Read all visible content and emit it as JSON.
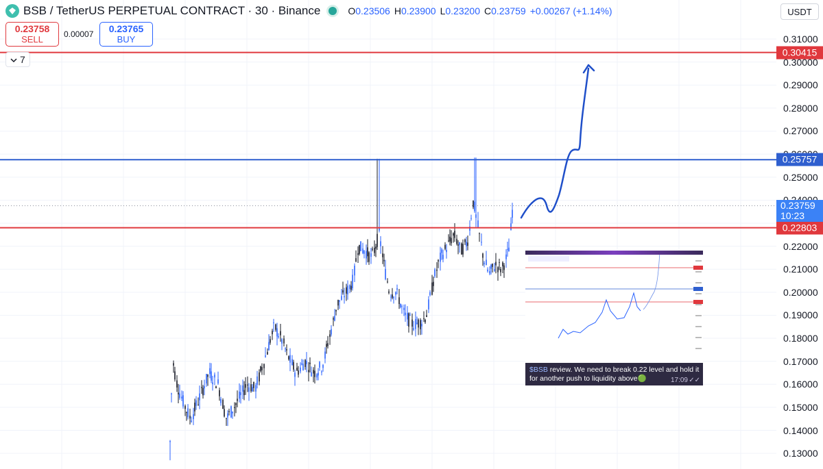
{
  "header": {
    "symbol": "BSB / TetherUS PERPETUAL CONTRACT · 30 · Binance",
    "open_label": "O",
    "open": "0.23506",
    "high_label": "H",
    "high": "0.23900",
    "low_label": "L",
    "low": "0.23200",
    "close_label": "C",
    "close": "0.23759",
    "change": "+0.00267 (+1.14%)",
    "currency": "USDT"
  },
  "trade": {
    "sell_price": "0.23758",
    "sell_label": "SELL",
    "spread": "0.00007",
    "buy_price": "0.23765",
    "buy_label": "BUY"
  },
  "indicators": {
    "count": "7"
  },
  "axis": {
    "ticks": [
      "0.31000",
      "0.30000",
      "0.29000",
      "0.28000",
      "0.27000",
      "0.26000",
      "0.25000",
      "0.24000",
      "0.23000",
      "0.22000",
      "0.21000",
      "0.20000",
      "0.19000",
      "0.18000",
      "0.17000",
      "0.16000",
      "0.15000",
      "0.14000",
      "0.13000"
    ]
  },
  "levels": [
    {
      "name": "resistance-top",
      "price": 0.30415,
      "label": "0.30415",
      "color": "#e0383d"
    },
    {
      "name": "resistance-mid",
      "price": 0.25757,
      "label": "0.25757",
      "color": "#2f5fcf"
    },
    {
      "name": "support",
      "price": 0.22803,
      "label": "0.22803",
      "color": "#e0383d"
    }
  ],
  "current": {
    "price": 0.23759,
    "label": "0.23759",
    "countdown": "10:23",
    "color": "#3b82f6"
  },
  "chat": {
    "cashtag": "$BSB",
    "message": " review. We need to break 0.22 level and hold it for another push to liquidity above",
    "emoji": "🟢",
    "time": "17:09"
  },
  "colors": {
    "candle_up": "#2962ff",
    "candle_down": "#131722",
    "drawing": "#1f4fc9"
  }
}
